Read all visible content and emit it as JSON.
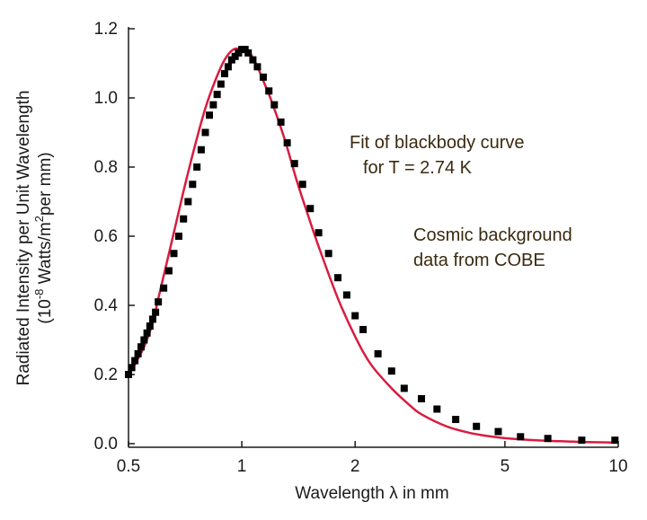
{
  "chart_data": {
    "type": "scatter",
    "xlabel": "Wavelength λ in mm",
    "ylabel_line1": "Radiated Intensity per Unit Wavelength",
    "ylabel_line2_parts": [
      "(10",
      "-8",
      " Watts/m",
      "2",
      "per mm)"
    ],
    "x_scale": "log",
    "xlim": [
      0.5,
      10
    ],
    "ylim": [
      0.0,
      1.2
    ],
    "x_ticks": [
      0.5,
      1,
      2,
      5,
      10
    ],
    "x_tick_labels": [
      "0.5",
      "1",
      "2",
      "5",
      "10"
    ],
    "y_ticks": [
      0.0,
      0.2,
      0.4,
      0.6,
      0.8,
      1.0,
      1.2
    ],
    "y_tick_labels": [
      "0.0",
      "0.2",
      "0.4",
      "0.6",
      "0.8",
      "1.0",
      "1.2"
    ],
    "grid": false,
    "annotations": [
      {
        "lines": [
          "Fit of blackbody curve",
          "for T = 2.74 K"
        ]
      },
      {
        "lines": [
          "Cosmic background",
          "data from COBE"
        ]
      }
    ],
    "series": [
      {
        "kind": "curve",
        "color": "#d81c3f",
        "x": [
          0.5,
          0.52,
          0.55,
          0.58,
          0.6,
          0.65,
          0.7,
          0.75,
          0.8,
          0.85,
          0.9,
          0.95,
          1.0,
          1.05,
          1.1,
          1.15,
          1.2,
          1.3,
          1.4,
          1.5,
          1.6,
          1.8,
          2.0,
          2.2,
          2.5,
          2.8,
          3.0,
          3.5,
          4.0,
          4.5,
          5.0,
          6.0,
          7.0,
          8.0,
          9.0,
          10.0
        ],
        "y": [
          0.2,
          0.23,
          0.28,
          0.35,
          0.42,
          0.58,
          0.73,
          0.86,
          0.97,
          1.05,
          1.11,
          1.14,
          1.14,
          1.13,
          1.09,
          1.04,
          0.99,
          0.88,
          0.76,
          0.66,
          0.57,
          0.42,
          0.31,
          0.23,
          0.16,
          0.11,
          0.085,
          0.05,
          0.032,
          0.022,
          0.016,
          0.01,
          0.007,
          0.005,
          0.004,
          0.003
        ]
      },
      {
        "kind": "markers",
        "color": "#000000",
        "x": [
          0.5,
          0.51,
          0.52,
          0.53,
          0.54,
          0.55,
          0.56,
          0.57,
          0.58,
          0.59,
          0.6,
          0.62,
          0.64,
          0.66,
          0.68,
          0.7,
          0.72,
          0.74,
          0.76,
          0.78,
          0.8,
          0.82,
          0.84,
          0.86,
          0.88,
          0.9,
          0.92,
          0.94,
          0.96,
          0.98,
          1.0,
          1.02,
          1.04,
          1.07,
          1.1,
          1.14,
          1.18,
          1.22,
          1.27,
          1.32,
          1.38,
          1.45,
          1.52,
          1.6,
          1.7,
          1.8,
          1.9,
          2.0,
          2.1,
          2.3,
          2.5,
          2.7,
          3.0,
          3.3,
          3.7,
          4.2,
          4.8,
          5.5,
          6.5,
          8.0,
          9.8
        ],
        "y": [
          0.2,
          0.22,
          0.24,
          0.26,
          0.28,
          0.3,
          0.32,
          0.34,
          0.36,
          0.38,
          0.41,
          0.45,
          0.5,
          0.55,
          0.6,
          0.65,
          0.7,
          0.75,
          0.8,
          0.85,
          0.9,
          0.95,
          0.98,
          1.01,
          1.04,
          1.07,
          1.09,
          1.11,
          1.12,
          1.13,
          1.14,
          1.14,
          1.13,
          1.11,
          1.09,
          1.06,
          1.02,
          0.98,
          0.93,
          0.87,
          0.81,
          0.75,
          0.68,
          0.61,
          0.55,
          0.48,
          0.43,
          0.37,
          0.33,
          0.26,
          0.21,
          0.16,
          0.13,
          0.1,
          0.07,
          0.05,
          0.035,
          0.02,
          0.015,
          0.01,
          0.01
        ]
      }
    ]
  }
}
